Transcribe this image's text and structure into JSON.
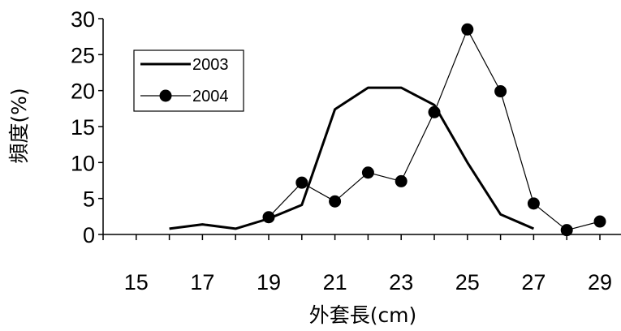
{
  "chart_data": {
    "type": "line",
    "xlabel": "外套長(cm)",
    "ylabel": "頻度(%)",
    "xlim": [
      14,
      31
    ],
    "ylim": [
      0,
      30
    ],
    "x_tick_labels": [
      "15",
      "17",
      "19",
      "21",
      "23",
      "25",
      "27",
      "29"
    ],
    "y_tick_labels": [
      "0",
      "5",
      "10",
      "15",
      "20",
      "25",
      "30"
    ],
    "legend_position": "top-left",
    "grid": false,
    "series": [
      {
        "name": "2003",
        "marker": "none",
        "points": [
          [
            16,
            0.8
          ],
          [
            17,
            1.4
          ],
          [
            18,
            0.8
          ],
          [
            19,
            2.2
          ],
          [
            20,
            4.1
          ],
          [
            21,
            17.4
          ],
          [
            22,
            20.4
          ],
          [
            23,
            20.4
          ],
          [
            24,
            18.0
          ],
          [
            25,
            10.0
          ],
          [
            26,
            2.8
          ],
          [
            27,
            0.8
          ]
        ]
      },
      {
        "name": "2004",
        "marker": "circle",
        "points": [
          [
            19,
            2.4
          ],
          [
            20,
            7.2
          ],
          [
            21,
            4.6
          ],
          [
            22,
            8.6
          ],
          [
            23,
            7.4
          ],
          [
            24,
            17.0
          ],
          [
            25,
            28.5
          ],
          [
            26,
            19.9
          ],
          [
            27,
            4.3
          ],
          [
            28,
            0.6
          ],
          [
            29,
            1.8
          ]
        ]
      }
    ]
  }
}
